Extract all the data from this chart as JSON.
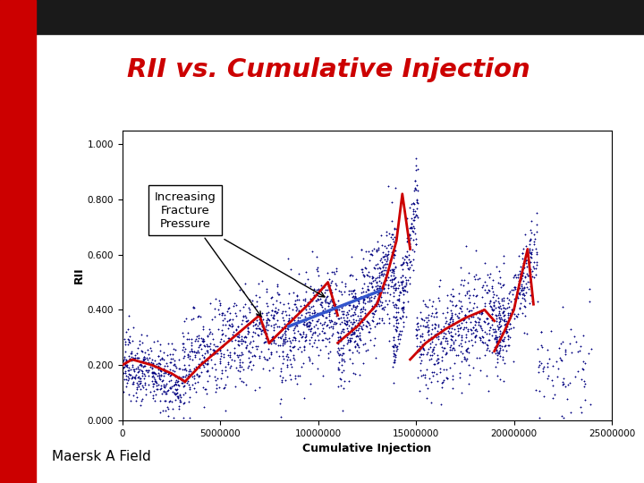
{
  "title": "RII vs. Cumulative Injection",
  "xlabel": "Cumulative Injection",
  "ylabel": "RII",
  "subtitle": "Maersk A Field",
  "annotation_text": "Increasing\nFracture\nPressure",
  "xlim": [
    0,
    25000000
  ],
  "ylim": [
    0.0,
    1.05
  ],
  "yticks": [
    0.0,
    0.2,
    0.4,
    0.6,
    0.8,
    1.0
  ],
  "xticks": [
    0,
    5000000,
    10000000,
    15000000,
    20000000,
    25000000
  ],
  "title_color": "#cc0000",
  "dot_color": "#000080",
  "red_line_color": "#cc0000",
  "blue_line_color": "#3355cc",
  "background_color": "#ffffff",
  "header_color": "#1a1a1a",
  "sidebar_color": "#cc0000",
  "seed": 42,
  "red_segments": [
    [
      [
        0,
        500000,
        1500000,
        2500000,
        3200000
      ],
      [
        0.2,
        0.22,
        0.2,
        0.17,
        0.14
      ]
    ],
    [
      [
        3200000,
        4000000,
        5000000,
        6000000,
        7000000,
        7500000
      ],
      [
        0.14,
        0.2,
        0.26,
        0.32,
        0.38,
        0.28
      ]
    ],
    [
      [
        7500000,
        8500000,
        9500000,
        10500000,
        11000000
      ],
      [
        0.28,
        0.35,
        0.42,
        0.5,
        0.38
      ]
    ],
    [
      [
        11000000,
        12000000,
        13000000,
        13500000,
        14000000,
        14300000,
        14700000
      ],
      [
        0.28,
        0.34,
        0.42,
        0.52,
        0.65,
        0.82,
        0.62
      ]
    ],
    [
      [
        14700000,
        15500000,
        16500000,
        17500000,
        18500000,
        19000000
      ],
      [
        0.22,
        0.28,
        0.33,
        0.37,
        0.4,
        0.36
      ]
    ],
    [
      [
        19000000,
        19500000,
        20000000,
        20300000,
        20700000,
        21000000
      ],
      [
        0.25,
        0.32,
        0.4,
        0.5,
        0.62,
        0.42
      ]
    ]
  ],
  "blue_line": [
    [
      8500000,
      13200000
    ],
    [
      0.34,
      0.47
    ]
  ]
}
